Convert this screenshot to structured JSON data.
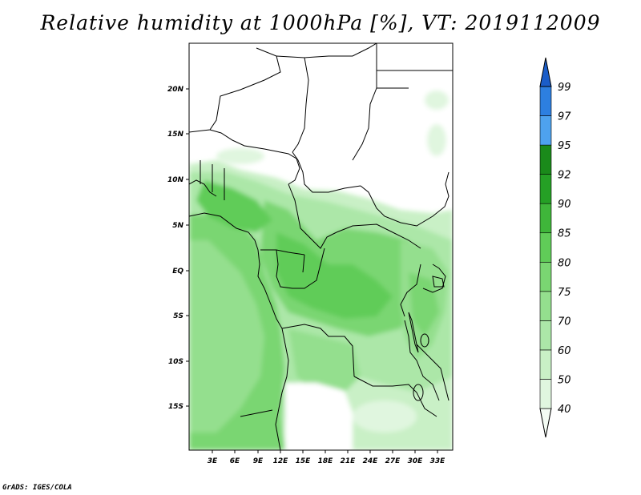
{
  "title": "Relative humidity at 1000hPa [%], VT: 2019112009",
  "credit": "GrADS: IGES/COLA",
  "map": {
    "lat_labels": [
      "20N",
      "15N",
      "10N",
      "5N",
      "EQ",
      "5S",
      "10S",
      "15S"
    ],
    "lon_labels": [
      "3E",
      "6E",
      "9E",
      "12E",
      "15E",
      "18E",
      "21E",
      "24E",
      "27E",
      "30E",
      "33E"
    ]
  },
  "colorbar": {
    "levels": [
      "40",
      "50",
      "60",
      "70",
      "75",
      "80",
      "85",
      "90",
      "92",
      "95",
      "97",
      "99"
    ],
    "colors": [
      "#f4fcf4",
      "#e0f6df",
      "#c9f0c6",
      "#ace7a8",
      "#94df8e",
      "#7ad672",
      "#60cc58",
      "#3fb63a",
      "#25a025",
      "#1a8a1a",
      "#4ea2ee",
      "#2d7fe0",
      "#1b5dc8"
    ]
  },
  "chart_data": {
    "type": "heatmap",
    "title": "Relative humidity at 1000hPa [%], VT: 2019112009",
    "variable_unit": "%",
    "x_ticks": [
      "3E",
      "6E",
      "9E",
      "12E",
      "15E",
      "18E",
      "21E",
      "24E",
      "27E",
      "30E",
      "33E"
    ],
    "y_ticks": [
      "20N",
      "15N",
      "10N",
      "5N",
      "EQ",
      "5S",
      "10S",
      "15S"
    ],
    "colorbar_levels": [
      40,
      50,
      60,
      70,
      75,
      80,
      85,
      90,
      92,
      95,
      97,
      99
    ],
    "lon_range": [
      0,
      34
    ],
    "lat_range": [
      -20,
      25
    ]
  }
}
